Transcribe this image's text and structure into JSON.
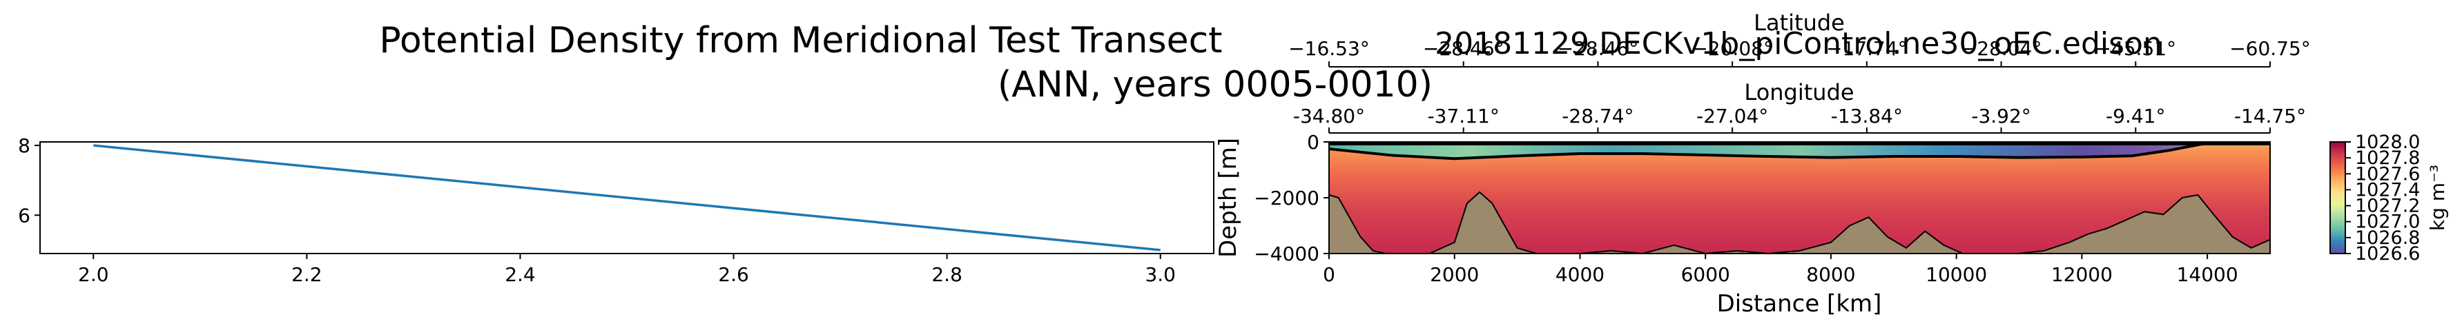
{
  "figure": {
    "title_line1": "Potential Density from Meridional Test Transect",
    "title_line2": "(ANN, years 0005-0010)",
    "run_label": "20181129.DECKv1b_piControl.ne30_oEC.edison"
  },
  "chart_data": [
    {
      "type": "line",
      "series": [
        {
          "x": [
            2.0,
            3.0
          ],
          "values": [
            8.0,
            5.0
          ],
          "color": "#1f77b4"
        }
      ],
      "xlim": [
        1.95,
        3.05
      ],
      "ylim": [
        4.9,
        8.1
      ],
      "xticks": [
        "2.0",
        "2.2",
        "2.4",
        "2.6",
        "2.8",
        "3.0"
      ],
      "yticks": [
        "8",
        "6"
      ],
      "xlabel": "",
      "ylabel": ""
    },
    {
      "type": "heatmap",
      "variable": "Potential Density",
      "xlabel": "Distance [km]",
      "ylabel": "Depth [m]",
      "xlim": [
        0,
        15000
      ],
      "ylim": [
        -4000,
        0
      ],
      "xticks": [
        "0",
        "2000",
        "4000",
        "6000",
        "8000",
        "10000",
        "12000",
        "14000"
      ],
      "yticks": [
        "0",
        "−2000",
        "−4000"
      ],
      "top_axis_1": {
        "label": "Latitude",
        "ticks": [
          "−16.53°",
          "−28.46°",
          "−28.46°",
          "−20.08°",
          "−17.74°",
          "−28.04°",
          "−45.51°",
          "−60.75°"
        ]
      },
      "top_axis_2": {
        "label": "Longitude",
        "ticks": [
          "-34.80°",
          "-37.11°",
          "-28.74°",
          "-27.04°",
          "-13.84°",
          "-3.92°",
          "-9.41°",
          "-14.75°"
        ]
      },
      "colorbar": {
        "label": "kg m⁻³",
        "range": [
          1026.6,
          1028.0
        ],
        "ticks": [
          "1028.0",
          "1027.8",
          "1027.6",
          "1027.4",
          "1027.2",
          "1027.0",
          "1026.8",
          "1026.6"
        ],
        "colormap": "Spectral_r",
        "colors": [
          "#5e4fa2",
          "#3288bd",
          "#66c2a5",
          "#abdda4",
          "#e6f598",
          "#fee08b",
          "#fdae61",
          "#f46d43",
          "#d53e4f",
          "#9e0142"
        ]
      },
      "bathymetry_color": "#9b8a6c",
      "bottom_depth_profile": {
        "distance_km": [
          0,
          150,
          300,
          500,
          700,
          900,
          1200,
          1600,
          2000,
          2200,
          2400,
          2600,
          2800,
          3000,
          3300,
          3600,
          4000,
          4500,
          5000,
          5500,
          6000,
          6500,
          7000,
          7500,
          8000,
          8300,
          8600,
          8900,
          9200,
          9500,
          9800,
          10100,
          10500,
          11000,
          11400,
          11800,
          12100,
          12400,
          12700,
          13000,
          13300,
          13600,
          13850,
          14100,
          14400,
          14700,
          15000
        ],
        "depth_m": [
          -1900,
          -2000,
          -2600,
          -3400,
          -3900,
          -4000,
          -4000,
          -4000,
          -3600,
          -2200,
          -1800,
          -2200,
          -3000,
          -3800,
          -4000,
          -4000,
          -4000,
          -3900,
          -4000,
          -3700,
          -4000,
          -3900,
          -4000,
          -3900,
          -3600,
          -3000,
          -2700,
          -3400,
          -3800,
          -3200,
          -3700,
          -4000,
          -4000,
          -4000,
          -3900,
          -3600,
          -3300,
          -3100,
          -2800,
          -2500,
          -2600,
          -2000,
          -1900,
          -2600,
          -3400,
          -3800,
          -3500
        ]
      },
      "density_contour": {
        "distance_km": [
          0,
          1000,
          2000,
          3000,
          4000,
          5000,
          6000,
          7000,
          8000,
          9000,
          10000,
          11000,
          12000,
          12800,
          13400,
          13900,
          14300,
          14700,
          15000
        ],
        "depth_m": [
          -250,
          -480,
          -600,
          -500,
          -420,
          -420,
          -470,
          -520,
          -560,
          -520,
          -520,
          -560,
          -540,
          -500,
          -300,
          -80,
          -40,
          -30,
          -30
        ]
      }
    }
  ]
}
